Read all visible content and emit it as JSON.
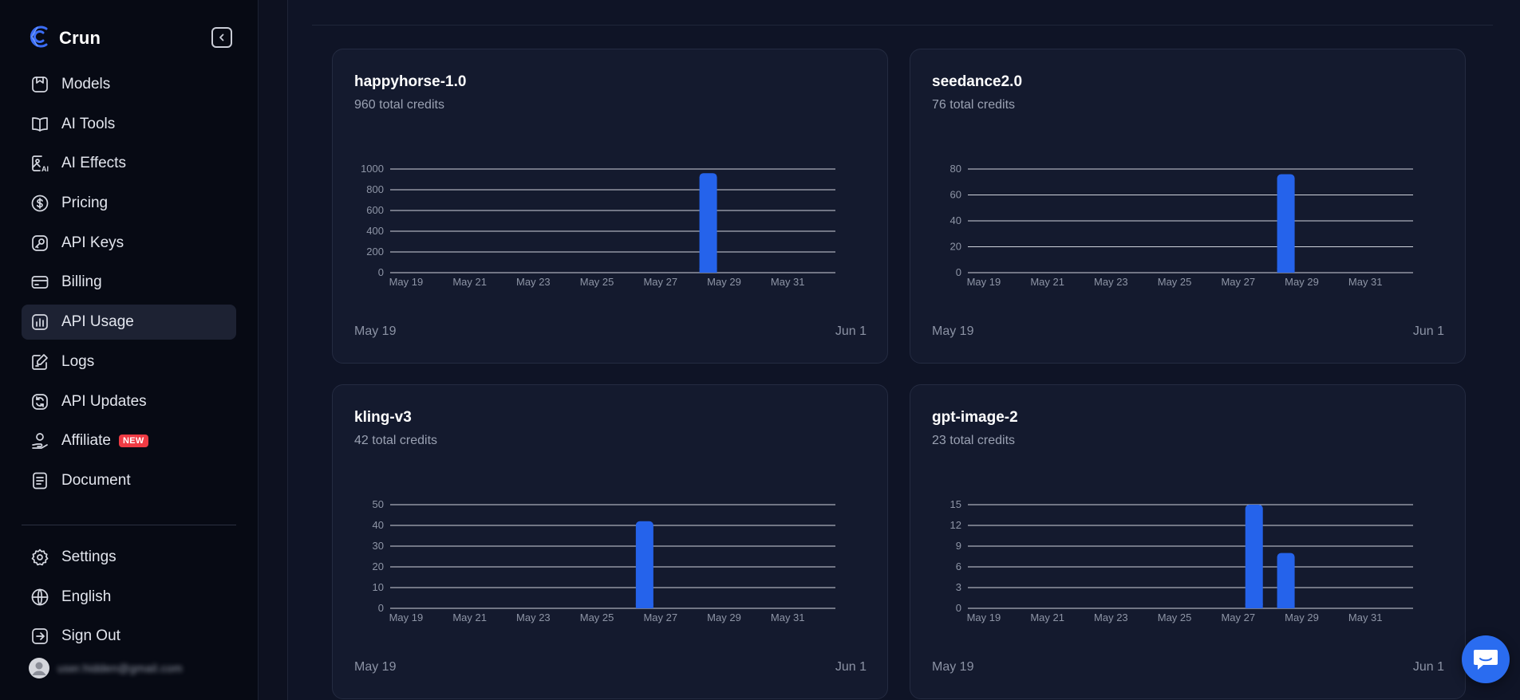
{
  "brand": {
    "name": "Crun"
  },
  "nav": {
    "items": [
      {
        "label": "Models",
        "icon": "models-icon"
      },
      {
        "label": "AI Tools",
        "icon": "book-icon"
      },
      {
        "label": "AI Effects",
        "icon": "ai-effects-icon"
      },
      {
        "label": "Pricing",
        "icon": "dollar-icon"
      },
      {
        "label": "API Keys",
        "icon": "key-icon"
      },
      {
        "label": "Billing",
        "icon": "card-icon"
      },
      {
        "label": "API Usage",
        "icon": "chart-icon",
        "active": true
      },
      {
        "label": "Logs",
        "icon": "edit-icon"
      },
      {
        "label": "API Updates",
        "icon": "refresh-icon"
      },
      {
        "label": "Affiliate",
        "icon": "affiliate-icon",
        "badge": "NEW"
      },
      {
        "label": "Document",
        "icon": "document-icon"
      }
    ],
    "bottom": [
      {
        "label": "Settings",
        "icon": "gear-icon"
      },
      {
        "label": "English",
        "icon": "globe-icon"
      },
      {
        "label": "Sign Out",
        "icon": "sign-out-icon"
      }
    ]
  },
  "user": {
    "email": "user.hidden@gmail.com"
  },
  "colors": {
    "accent": "#2563eb",
    "bar": "#2563eb",
    "badge": "#ef3b44"
  },
  "cards": [
    {
      "title": "happyhorse-1.0",
      "subtitle": "960 total credits",
      "start": "May 19",
      "end": "Jun 1"
    },
    {
      "title": "seedance2.0",
      "subtitle": "76 total credits",
      "start": "May 19",
      "end": "Jun 1"
    },
    {
      "title": "kling-v3",
      "subtitle": "42 total credits",
      "start": "May 19",
      "end": "Jun 1"
    },
    {
      "title": "gpt-image-2",
      "subtitle": "23 total credits",
      "start": "May 19",
      "end": "Jun 1"
    }
  ],
  "chart_data": [
    {
      "type": "bar",
      "title": "happyhorse-1.0",
      "categories": [
        "May 19",
        "May 20",
        "May 21",
        "May 22",
        "May 23",
        "May 24",
        "May 25",
        "May 26",
        "May 27",
        "May 28",
        "May 29",
        "May 30",
        "May 31",
        "Jun 1"
      ],
      "tick_labels": [
        "May 19",
        "May 21",
        "May 23",
        "May 25",
        "May 27",
        "May 29",
        "May 31"
      ],
      "y_ticks": [
        0,
        200,
        400,
        600,
        800,
        1000
      ],
      "values": [
        0,
        0,
        0,
        0,
        0,
        0,
        0,
        0,
        0,
        960,
        0,
        0,
        0,
        0
      ],
      "ylim": [
        0,
        1000
      ],
      "grid": true
    },
    {
      "type": "bar",
      "title": "seedance2.0",
      "categories": [
        "May 19",
        "May 20",
        "May 21",
        "May 22",
        "May 23",
        "May 24",
        "May 25",
        "May 26",
        "May 27",
        "May 28",
        "May 29",
        "May 30",
        "May 31",
        "Jun 1"
      ],
      "tick_labels": [
        "May 19",
        "May 21",
        "May 23",
        "May 25",
        "May 27",
        "May 29",
        "May 31"
      ],
      "y_ticks": [
        0,
        20,
        40,
        60,
        80
      ],
      "values": [
        0,
        0,
        0,
        0,
        0,
        0,
        0,
        0,
        0,
        76,
        0,
        0,
        0,
        0
      ],
      "ylim": [
        0,
        80
      ],
      "grid": true
    },
    {
      "type": "bar",
      "title": "kling-v3",
      "categories": [
        "May 19",
        "May 20",
        "May 21",
        "May 22",
        "May 23",
        "May 24",
        "May 25",
        "May 26",
        "May 27",
        "May 28",
        "May 29",
        "May 30",
        "May 31",
        "Jun 1"
      ],
      "tick_labels": [
        "May 19",
        "May 21",
        "May 23",
        "May 25",
        "May 27",
        "May 29",
        "May 31"
      ],
      "y_ticks": [
        0,
        10,
        20,
        30,
        40,
        50
      ],
      "values": [
        0,
        0,
        0,
        0,
        0,
        0,
        0,
        42,
        0,
        0,
        0,
        0,
        0,
        0
      ],
      "ylim": [
        0,
        50
      ],
      "grid": true
    },
    {
      "type": "bar",
      "title": "gpt-image-2",
      "categories": [
        "May 19",
        "May 20",
        "May 21",
        "May 22",
        "May 23",
        "May 24",
        "May 25",
        "May 26",
        "May 27",
        "May 28",
        "May 29",
        "May 30",
        "May 31",
        "Jun 1"
      ],
      "tick_labels": [
        "May 19",
        "May 21",
        "May 23",
        "May 25",
        "May 27",
        "May 29",
        "May 31"
      ],
      "y_ticks": [
        0,
        3,
        6,
        9,
        12,
        15
      ],
      "values": [
        0,
        0,
        0,
        0,
        0,
        0,
        0,
        0,
        15,
        8,
        0,
        0,
        0,
        0
      ],
      "ylim": [
        0,
        15
      ],
      "grid": true
    }
  ]
}
